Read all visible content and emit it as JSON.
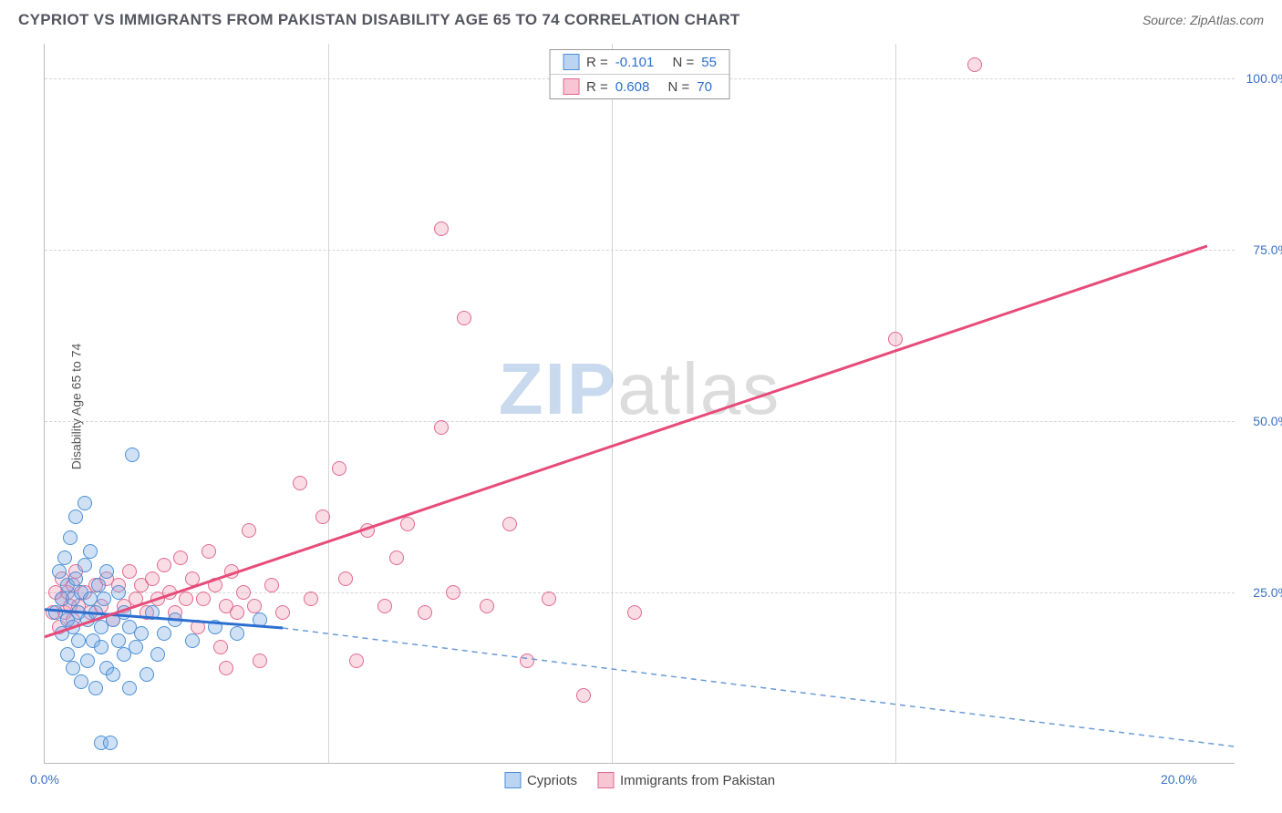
{
  "header": {
    "title": "CYPRIOT VS IMMIGRANTS FROM PAKISTAN DISABILITY AGE 65 TO 74 CORRELATION CHART",
    "source": "Source: ZipAtlas.com"
  },
  "chart": {
    "type": "scatter",
    "ylabel": "Disability Age 65 to 74",
    "background_color": "#ffffff",
    "grid_color": "#d5d5d5",
    "x_axis": {
      "min": 0,
      "max": 21,
      "ticks": [
        0,
        20
      ],
      "tick_labels": [
        "0.0%",
        "20.0%"
      ],
      "minor_ticks": [
        5,
        10,
        15
      ]
    },
    "y_axis": {
      "min": 0,
      "max": 105,
      "ticks": [
        25,
        50,
        75,
        100
      ],
      "tick_labels": [
        "25.0%",
        "50.0%",
        "75.0%",
        "100.0%"
      ]
    },
    "watermark": {
      "bold": "ZIP",
      "rest": "atlas"
    }
  },
  "legend_stats": {
    "rows": [
      {
        "series": "a",
        "r_label": "R =",
        "r_val": "-0.101",
        "n_label": "N =",
        "n_val": "55"
      },
      {
        "series": "b",
        "r_label": "R =",
        "r_val": "0.608",
        "n_label": "N =",
        "n_val": "70"
      }
    ]
  },
  "legend_bottom": {
    "items": [
      {
        "series": "a",
        "label": "Cypriots"
      },
      {
        "series": "b",
        "label": "Immigrants from Pakistan"
      }
    ]
  },
  "series": {
    "a": {
      "name": "Cypriots",
      "color_fill": "rgba(120,170,230,0.35)",
      "color_stroke": "#4a8fd6",
      "marker_radius": 8,
      "trend": {
        "color": "#2d6fd0",
        "solid_x_range": [
          0,
          4.2
        ],
        "y_at_x0": 22.5,
        "y_at_xmax_solid": 19.8,
        "dash_x_range": [
          4.2,
          21
        ],
        "y_at_xmax_dash": 2.5
      },
      "points": [
        [
          0.2,
          22
        ],
        [
          0.25,
          28
        ],
        [
          0.3,
          19
        ],
        [
          0.3,
          24
        ],
        [
          0.35,
          30
        ],
        [
          0.4,
          16
        ],
        [
          0.4,
          21
        ],
        [
          0.4,
          26
        ],
        [
          0.45,
          33
        ],
        [
          0.5,
          14
        ],
        [
          0.5,
          20
        ],
        [
          0.5,
          24
        ],
        [
          0.55,
          27
        ],
        [
          0.55,
          36
        ],
        [
          0.6,
          18
        ],
        [
          0.6,
          22
        ],
        [
          0.65,
          12
        ],
        [
          0.65,
          25
        ],
        [
          0.7,
          29
        ],
        [
          0.7,
          38
        ],
        [
          0.75,
          15
        ],
        [
          0.75,
          21
        ],
        [
          0.8,
          24
        ],
        [
          0.8,
          31
        ],
        [
          0.85,
          18
        ],
        [
          0.9,
          11
        ],
        [
          0.9,
          22
        ],
        [
          0.95,
          26
        ],
        [
          1.0,
          17
        ],
        [
          1.0,
          20
        ],
        [
          1.05,
          24
        ],
        [
          1.1,
          14
        ],
        [
          1.1,
          28
        ],
        [
          1.2,
          21
        ],
        [
          1.2,
          13
        ],
        [
          1.3,
          25
        ],
        [
          1.3,
          18
        ],
        [
          1.4,
          16
        ],
        [
          1.4,
          22
        ],
        [
          1.5,
          11
        ],
        [
          1.5,
          20
        ],
        [
          1.55,
          45
        ],
        [
          1.6,
          17
        ],
        [
          1.7,
          19
        ],
        [
          1.8,
          13
        ],
        [
          1.9,
          22
        ],
        [
          2.0,
          16
        ],
        [
          2.1,
          19
        ],
        [
          2.3,
          21
        ],
        [
          2.6,
          18
        ],
        [
          3.0,
          20
        ],
        [
          3.4,
          19
        ],
        [
          3.8,
          21
        ],
        [
          1.0,
          3
        ],
        [
          1.15,
          3
        ]
      ]
    },
    "b": {
      "name": "Immigrants from Pakistan",
      "color_fill": "rgba(240,140,170,0.30)",
      "color_stroke": "#e06a8f",
      "marker_radius": 8,
      "trend": {
        "color": "#e74b7a",
        "solid_x_range": [
          0,
          20.5
        ],
        "y_at_x0": 18.5,
        "y_at_xmax_solid": 75.5
      },
      "points": [
        [
          0.15,
          22
        ],
        [
          0.2,
          25
        ],
        [
          0.25,
          20
        ],
        [
          0.3,
          24
        ],
        [
          0.3,
          27
        ],
        [
          0.35,
          22
        ],
        [
          0.4,
          25
        ],
        [
          0.45,
          23
        ],
        [
          0.5,
          26
        ],
        [
          0.5,
          21
        ],
        [
          0.55,
          28
        ],
        [
          0.6,
          23
        ],
        [
          0.7,
          25
        ],
        [
          0.8,
          22
        ],
        [
          0.9,
          26
        ],
        [
          1.0,
          23
        ],
        [
          1.1,
          27
        ],
        [
          1.2,
          21
        ],
        [
          1.3,
          26
        ],
        [
          1.4,
          23
        ],
        [
          1.5,
          28
        ],
        [
          1.6,
          24
        ],
        [
          1.7,
          26
        ],
        [
          1.8,
          22
        ],
        [
          1.9,
          27
        ],
        [
          2.0,
          24
        ],
        [
          2.1,
          29
        ],
        [
          2.2,
          25
        ],
        [
          2.3,
          22
        ],
        [
          2.4,
          30
        ],
        [
          2.5,
          24
        ],
        [
          2.6,
          27
        ],
        [
          2.7,
          20
        ],
        [
          2.8,
          24
        ],
        [
          2.9,
          31
        ],
        [
          3.0,
          26
        ],
        [
          3.1,
          17
        ],
        [
          3.2,
          23
        ],
        [
          3.3,
          28
        ],
        [
          3.4,
          22
        ],
        [
          3.5,
          25
        ],
        [
          3.6,
          34
        ],
        [
          3.7,
          23
        ],
        [
          3.8,
          15
        ],
        [
          4.0,
          26
        ],
        [
          4.2,
          22
        ],
        [
          4.5,
          41
        ],
        [
          4.7,
          24
        ],
        [
          4.9,
          36
        ],
        [
          5.2,
          43
        ],
        [
          5.3,
          27
        ],
        [
          5.5,
          15
        ],
        [
          5.7,
          34
        ],
        [
          6.0,
          23
        ],
        [
          6.2,
          30
        ],
        [
          6.4,
          35
        ],
        [
          6.7,
          22
        ],
        [
          7.0,
          49
        ],
        [
          7.0,
          78
        ],
        [
          7.2,
          25
        ],
        [
          7.4,
          65
        ],
        [
          7.8,
          23
        ],
        [
          8.2,
          35
        ],
        [
          8.5,
          15
        ],
        [
          8.9,
          24
        ],
        [
          9.5,
          10
        ],
        [
          10.4,
          22
        ],
        [
          15.0,
          62
        ],
        [
          16.4,
          102
        ],
        [
          3.2,
          14
        ]
      ]
    }
  }
}
